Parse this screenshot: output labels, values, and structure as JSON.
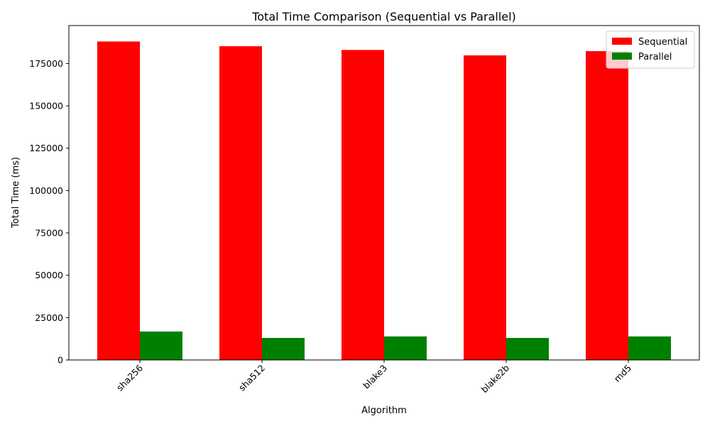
{
  "chart_data": {
    "type": "bar",
    "title": "Total Time Comparison (Sequential vs Parallel)",
    "xlabel": "Algorithm",
    "ylabel": "Total Time (ms)",
    "categories": [
      "sha256",
      "sha512",
      "blake3",
      "blake2b",
      "md5"
    ],
    "series": [
      {
        "name": "Sequential",
        "color": "#ff0000",
        "values": [
          188000,
          185200,
          183000,
          179800,
          182300
        ]
      },
      {
        "name": "Parallel",
        "color": "#008000",
        "values": [
          16800,
          13000,
          13900,
          13000,
          13900
        ]
      }
    ],
    "ylim": [
      0,
      197400
    ],
    "yticks": [
      0,
      25000,
      50000,
      75000,
      100000,
      125000,
      150000,
      175000
    ],
    "grid": false,
    "legend": "top-right",
    "xtick_rotation": 45
  }
}
